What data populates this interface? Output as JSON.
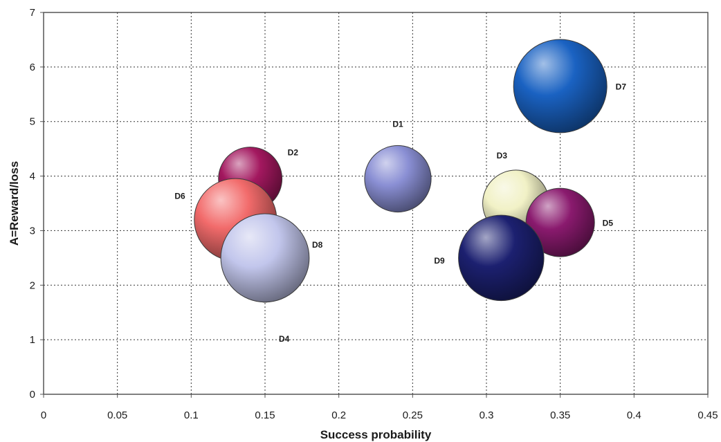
{
  "chart_data": {
    "type": "bubble",
    "xlabel": "Success probability",
    "ylabel": "A=Reward/loss",
    "xlim": [
      0,
      0.45
    ],
    "ylim": [
      0,
      7
    ],
    "x_ticks": [
      "0",
      "0.05",
      "0.1",
      "0.15",
      "0.2",
      "0.25",
      "0.3",
      "0.35",
      "0.4",
      "0.45"
    ],
    "y_ticks": [
      "0",
      "1",
      "2",
      "3",
      "4",
      "5",
      "6",
      "7"
    ],
    "grid": true,
    "points": [
      {
        "label": "D1",
        "x": 0.24,
        "y": 3.95,
        "r": 0.134,
        "color": "#8a8fd4"
      },
      {
        "label": "D2",
        "x": 0.14,
        "y": 3.95,
        "r": 0.128,
        "color": "#a3185f"
      },
      {
        "label": "D3",
        "x": 0.32,
        "y": 3.5,
        "r": 0.134,
        "color": "#f1f1c6"
      },
      {
        "label": "D4",
        "x": 0.15,
        "y": 1.85,
        "r": 0.036,
        "color": "#7fd1c8"
      },
      {
        "label": "D5",
        "x": 0.35,
        "y": 3.15,
        "r": 0.138,
        "color": "#8a1a6e"
      },
      {
        "label": "D6",
        "x": 0.13,
        "y": 3.2,
        "r": 0.166,
        "color": "#f26b6b"
      },
      {
        "label": "D7",
        "x": 0.35,
        "y": 5.65,
        "r": 0.188,
        "color": "#1a62c2"
      },
      {
        "label": "D8",
        "x": 0.15,
        "y": 2.5,
        "r": 0.178,
        "color": "#c2c6ec"
      },
      {
        "label": "D9",
        "x": 0.31,
        "y": 2.5,
        "r": 0.172,
        "color": "#1c2070"
      }
    ]
  }
}
